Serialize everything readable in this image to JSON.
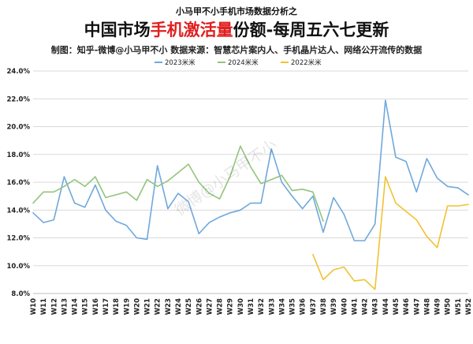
{
  "header": {
    "top_note": "小马甲不小手机市场数据分析之",
    "title_pre": "中国市场",
    "title_highlight": "手机激活量",
    "title_post": "份额-每周五六七更新",
    "source": "制图：知乎-微博@小马甲不小   数据来源：智慧芯片案内人、手机晶片达人、网络公开流传的数据"
  },
  "watermark": "微博@小马甲不小",
  "colors": {
    "grid": "#d9d9d9",
    "axis": "#bfbfbf"
  },
  "chart_data": {
    "type": "line",
    "x": [
      "W10",
      "W11",
      "W12",
      "W13",
      "W14",
      "W15",
      "W16",
      "W17",
      "W18",
      "W19",
      "W20",
      "W21",
      "W22",
      "W23",
      "W24",
      "W25",
      "W26",
      "W27",
      "W28",
      "W29",
      "W30",
      "W31",
      "W32",
      "W33",
      "W34",
      "W35",
      "W36",
      "W37",
      "W38",
      "W39",
      "W40",
      "W41",
      "W42",
      "W43",
      "W44",
      "W45",
      "W46",
      "W47",
      "W48",
      "W49",
      "W50",
      "W51",
      "W52"
    ],
    "ylim": [
      8.0,
      24.0
    ],
    "yticks": [
      "8.0%",
      "10.0%",
      "12.0%",
      "14.0%",
      "16.0%",
      "18.0%",
      "20.0%",
      "22.0%",
      "24.0%"
    ],
    "ytick_values": [
      8,
      10,
      12,
      14,
      16,
      18,
      20,
      22,
      24
    ],
    "grid": true,
    "legend_position": "top",
    "series": [
      {
        "name": "2023米米",
        "color": "#6fa8dc",
        "values": [
          13.8,
          13.1,
          13.3,
          16.4,
          14.5,
          14.2,
          15.8,
          14.0,
          13.2,
          12.9,
          12.0,
          11.9,
          17.2,
          14.1,
          15.2,
          14.6,
          12.3,
          13.1,
          13.5,
          13.8,
          14.0,
          14.5,
          14.5,
          18.4,
          16.0,
          15.0,
          14.1,
          15.0,
          12.4,
          14.9,
          13.7,
          11.8,
          11.8,
          13.0,
          21.9,
          17.8,
          17.5,
          15.3,
          17.7,
          16.3,
          15.7,
          15.6,
          15.1
        ]
      },
      {
        "name": "2024米米",
        "color": "#93c47d",
        "values": [
          14.5,
          15.3,
          15.3,
          15.7,
          16.2,
          15.7,
          16.4,
          14.9,
          15.1,
          15.3,
          14.7,
          16.2,
          15.7,
          16.1,
          16.7,
          17.3,
          16.0,
          15.2,
          14.8,
          16.4,
          18.6,
          17.1,
          15.9,
          16.2,
          16.5,
          15.4,
          15.5,
          15.3,
          13.2,
          null,
          null,
          null,
          null,
          null,
          null,
          null,
          null,
          null,
          null,
          null,
          null,
          null,
          null
        ]
      },
      {
        "name": "2022米米",
        "color": "#f1c232",
        "values": [
          null,
          null,
          null,
          null,
          null,
          null,
          null,
          null,
          null,
          null,
          null,
          null,
          null,
          null,
          null,
          null,
          null,
          null,
          null,
          null,
          null,
          null,
          null,
          null,
          null,
          null,
          null,
          10.8,
          9.0,
          9.7,
          9.9,
          8.9,
          9.0,
          8.3,
          16.4,
          14.5,
          13.9,
          13.3,
          12.1,
          11.3,
          14.3,
          14.3,
          14.4
        ]
      }
    ],
    "legend_order": [
      0,
      1,
      2
    ]
  }
}
